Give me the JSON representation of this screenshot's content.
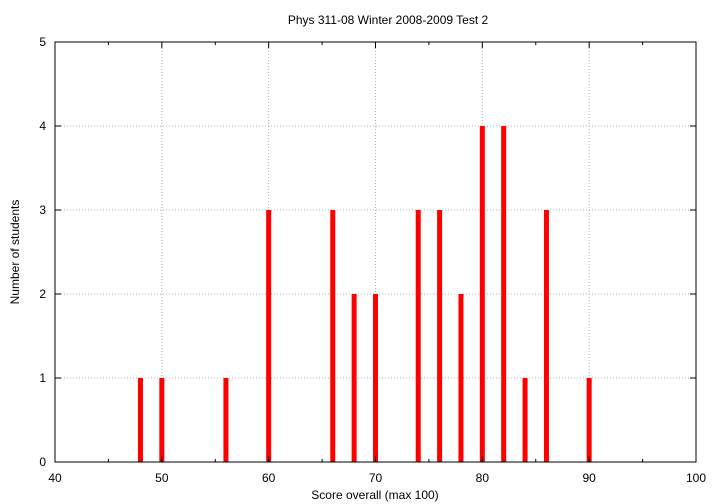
{
  "chart_data": {
    "type": "bar",
    "title": "Phys 311-08 Winter 2008-2009 Test 2",
    "xlabel": "Score overall (max 100)",
    "ylabel": "Number of students",
    "xlim": [
      40,
      100
    ],
    "ylim": [
      0,
      5
    ],
    "xticks": [
      40,
      50,
      60,
      70,
      80,
      90,
      100
    ],
    "yticks": [
      0,
      1,
      2,
      3,
      4,
      5
    ],
    "grid": true,
    "bar_color": "#ff0000",
    "points": [
      {
        "x": 48,
        "y": 1
      },
      {
        "x": 50,
        "y": 1
      },
      {
        "x": 56,
        "y": 1
      },
      {
        "x": 60,
        "y": 3
      },
      {
        "x": 66,
        "y": 3
      },
      {
        "x": 68,
        "y": 2
      },
      {
        "x": 70,
        "y": 2
      },
      {
        "x": 74,
        "y": 3
      },
      {
        "x": 76,
        "y": 3
      },
      {
        "x": 78,
        "y": 2
      },
      {
        "x": 80,
        "y": 4
      },
      {
        "x": 82,
        "y": 4
      },
      {
        "x": 84,
        "y": 1
      },
      {
        "x": 86,
        "y": 3
      },
      {
        "x": 90,
        "y": 1
      }
    ]
  }
}
